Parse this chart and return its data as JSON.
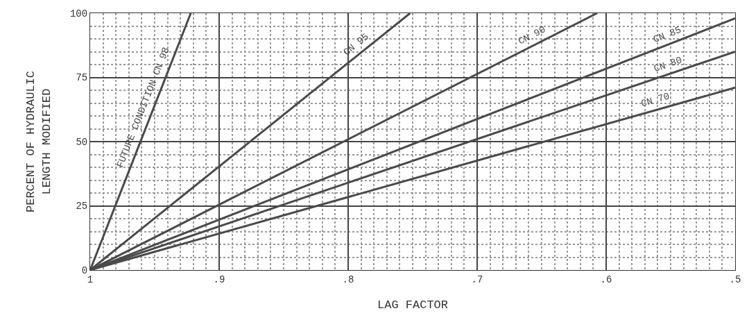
{
  "chart_data": {
    "type": "line",
    "xlabel": "LAG FACTOR",
    "ylabel": "PERCENT OF HYDRAULIC\nLENGTH MODIFIED",
    "xlim": [
      1,
      0.5
    ],
    "ylim": [
      0,
      100
    ],
    "xticks": [
      1,
      {
        "value": 0.9,
        "label": ".9"
      },
      {
        "value": 0.8,
        "label": ".8"
      },
      {
        "value": 0.7,
        "label": ".7"
      },
      {
        "value": 0.6,
        "label": ".6"
      },
      {
        "value": 0.5,
        "label": ".5"
      }
    ],
    "yticks": [
      0,
      25,
      50,
      75,
      100
    ],
    "grid": true,
    "legend": false,
    "marker": "none",
    "line_style": "solid",
    "series": [
      {
        "name": "FUTURE CONDITION CN 98",
        "color": "#4a4a4a",
        "x": [
          1,
          0.922
        ],
        "values": [
          0,
          100
        ]
      },
      {
        "name": "CN 95",
        "color": "#4a4a4a",
        "x": [
          1,
          0.752
        ],
        "values": [
          0,
          100
        ]
      },
      {
        "name": "CN 90",
        "color": "#4a4a4a",
        "x": [
          1,
          0.607
        ],
        "values": [
          0,
          100
        ]
      },
      {
        "name": "CN 85",
        "color": "#4a4a4a",
        "x": [
          1,
          0.5
        ],
        "values": [
          0,
          98
        ]
      },
      {
        "name": "CN 80",
        "color": "#4a4a4a",
        "x": [
          1,
          0.5
        ],
        "values": [
          0,
          85
        ]
      },
      {
        "name": "CN 70",
        "color": "#4a4a4a",
        "x": [
          1,
          0.5
        ],
        "values": [
          0,
          71
        ]
      }
    ]
  }
}
